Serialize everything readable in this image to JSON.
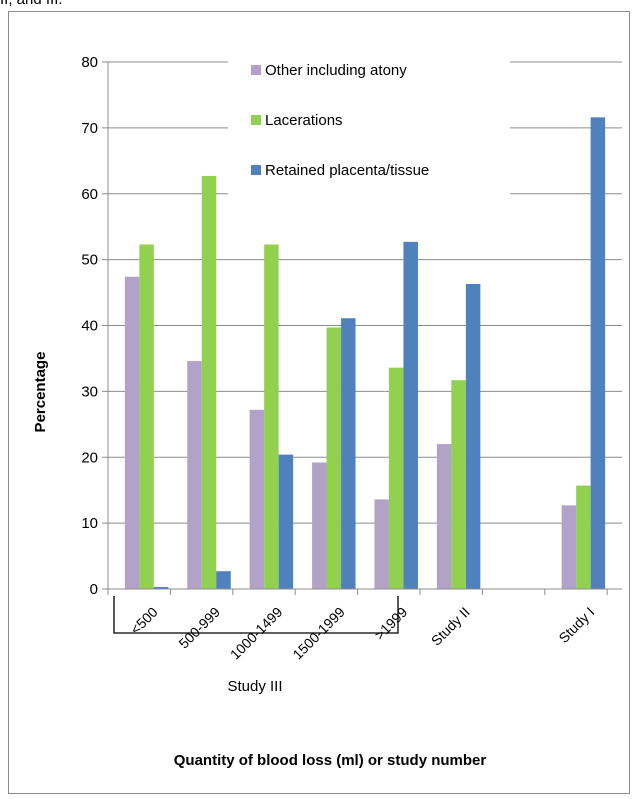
{
  "caption_fragment": "II, and III.",
  "chart_data": {
    "type": "bar",
    "categories": [
      "<500",
      "500-999",
      "1000-1499",
      "1500-1999",
      ">1999",
      "Study II",
      "",
      "Study I"
    ],
    "series": [
      {
        "name": "Other including atony",
        "color": "#b3a2c7",
        "values": [
          47.4,
          34.6,
          27.2,
          19.2,
          13.6,
          22,
          null,
          12.7
        ]
      },
      {
        "name": "Lacerations",
        "color": "#92d050",
        "values": [
          52.3,
          62.7,
          52.3,
          39.7,
          33.6,
          31.7,
          null,
          15.7
        ]
      },
      {
        "name": "Retained placenta/tissue",
        "color": "#4f81bd",
        "values": [
          0.3,
          2.7,
          20.4,
          41.1,
          52.7,
          46.3,
          null,
          71.6
        ]
      }
    ],
    "ylabel": "Percentage",
    "xlabel": "Quantity of blood loss (ml) or study number",
    "ylim": [
      0,
      80
    ],
    "yticks": [
      0,
      10,
      20,
      30,
      40,
      50,
      60,
      70,
      80
    ],
    "grid": true,
    "legend_position": "top-center",
    "group_label": "Study III"
  }
}
